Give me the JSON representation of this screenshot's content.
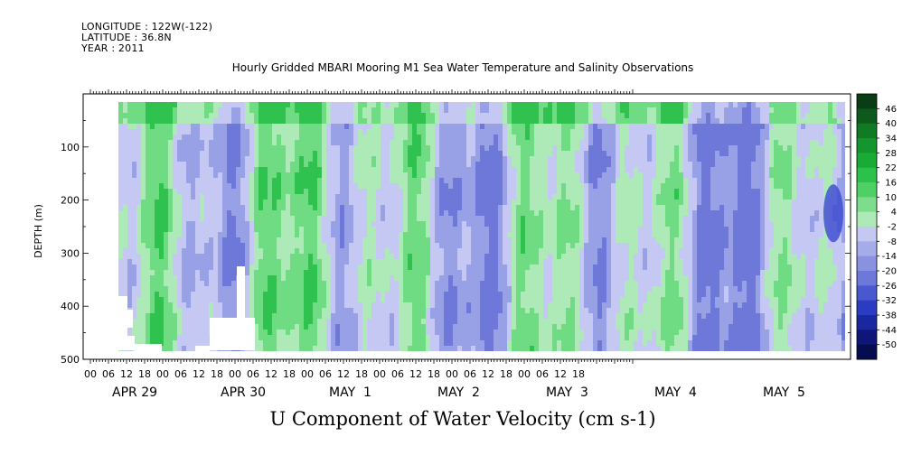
{
  "header": {
    "longitude": "LONGITUDE : 122W(-122)",
    "latitude": "LATITUDE : 36.8N",
    "year": "YEAR : 2011"
  },
  "chart_data": {
    "type": "heatmap",
    "title": "Hourly Gridded MBARI Mooring M1 Sea Water Temperature and Salinity Observations",
    "xlabel": "U Component of Water Velocity (cm s-1)",
    "ylabel": "DEPTH (m)",
    "ylim": [
      500,
      0
    ],
    "y_ticks": [
      100,
      200,
      300,
      400,
      500
    ],
    "x_hour_ticks": [
      "00",
      "06",
      "12",
      "18",
      "00",
      "06",
      "12",
      "18",
      "00",
      "06",
      "12",
      "18",
      "00",
      "06",
      "12",
      "18",
      "00",
      "06",
      "12",
      "18",
      "00",
      "06",
      "12",
      "18",
      "00",
      "06",
      "12",
      "18"
    ],
    "x_day_labels": [
      "APR 29",
      "APR 30",
      "MAY  1",
      "MAY  2",
      "MAY  3",
      "MAY  4",
      "MAY  5"
    ],
    "colorbar": {
      "levels": [
        "46",
        "40",
        "34",
        "28",
        "22",
        "16",
        "10",
        "4",
        "-2",
        "-8",
        "-14",
        "-20",
        "-26",
        "-32",
        "-38",
        "-44",
        "-50"
      ],
      "colors_top_to_bottom": [
        "#0a3d14",
        "#0d5a1c",
        "#107a25",
        "#14952e",
        "#1aab37",
        "#2bc14a",
        "#4fd065",
        "#7ddd8c",
        "#aeeab8",
        "#c4c8f2",
        "#a6ace9",
        "#8a92e0",
        "#6e78d8",
        "#4a58cf",
        "#2a3cbf",
        "#1a28a0",
        "#0e1678",
        "#060c50"
      ]
    },
    "ocean_colors": {
      "green_light": "#aeeab8",
      "green_mid": "#6fdc84",
      "green_strong": "#2fc24f",
      "green_dark": "#14952e",
      "blue_light": "#c4c8f2",
      "blue_mid": "#98a0e6",
      "blue_strong": "#6e78d8",
      "blue_dark": "#3a4ad0"
    },
    "grid": false,
    "legend": "right"
  }
}
